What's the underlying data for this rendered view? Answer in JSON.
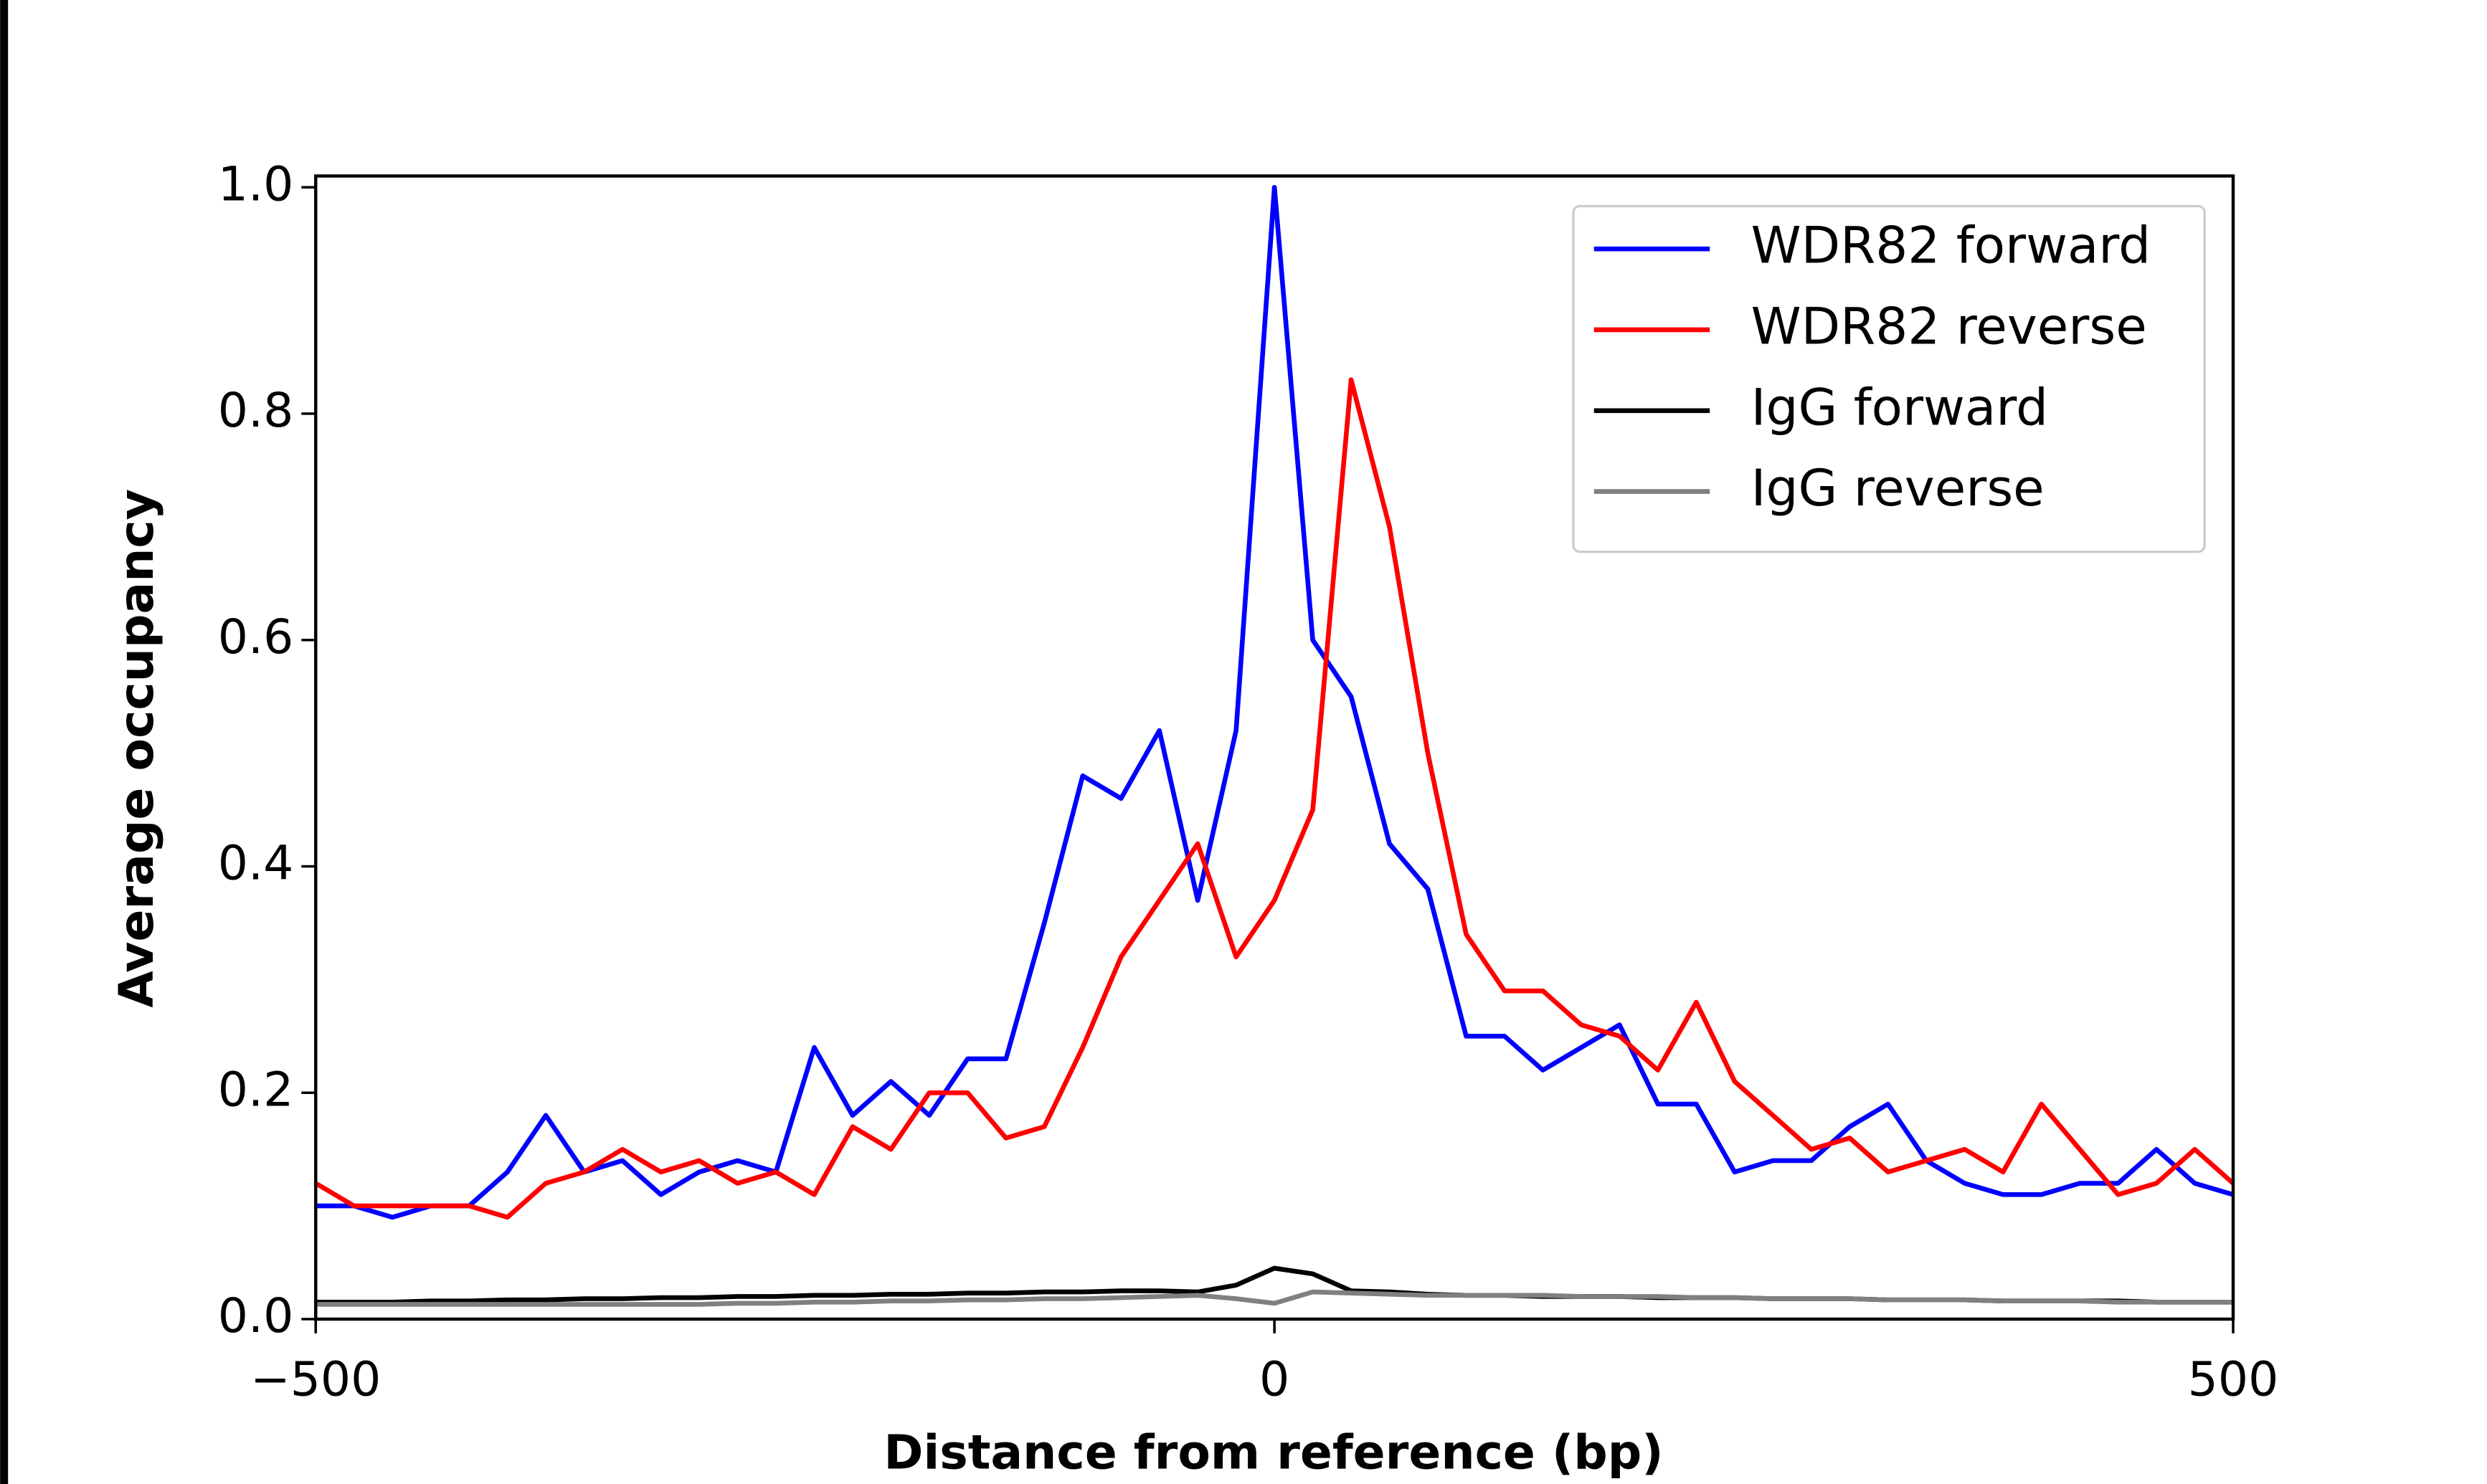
{
  "chart_data": {
    "type": "line",
    "xlabel": "Distance from reference (bp)",
    "ylabel": "Average occupancy",
    "x": [
      -500,
      -480,
      -460,
      -440,
      -420,
      -400,
      -380,
      -360,
      -340,
      -320,
      -300,
      -280,
      -260,
      -240,
      -220,
      -200,
      -180,
      -160,
      -140,
      -120,
      -100,
      -80,
      -60,
      -40,
      -20,
      0,
      20,
      40,
      60,
      80,
      100,
      120,
      140,
      160,
      180,
      200,
      220,
      240,
      260,
      280,
      300,
      320,
      340,
      360,
      380,
      400,
      420,
      440,
      460,
      480,
      500
    ],
    "series": [
      {
        "name": "WDR82 forward",
        "color": "#0000ff",
        "values": [
          0.1,
          0.1,
          0.09,
          0.1,
          0.1,
          0.13,
          0.18,
          0.13,
          0.14,
          0.11,
          0.13,
          0.14,
          0.13,
          0.24,
          0.18,
          0.21,
          0.18,
          0.23,
          0.23,
          0.35,
          0.48,
          0.46,
          0.52,
          0.37,
          0.52,
          1.0,
          0.6,
          0.55,
          0.42,
          0.38,
          0.25,
          0.25,
          0.22,
          0.24,
          0.26,
          0.19,
          0.19,
          0.13,
          0.14,
          0.14,
          0.17,
          0.19,
          0.14,
          0.12,
          0.11,
          0.11,
          0.12,
          0.12,
          0.15,
          0.12,
          0.11
        ]
      },
      {
        "name": "WDR82 reverse",
        "color": "#ff0000",
        "values": [
          0.12,
          0.1,
          0.1,
          0.1,
          0.1,
          0.09,
          0.12,
          0.13,
          0.15,
          0.13,
          0.14,
          0.12,
          0.13,
          0.11,
          0.17,
          0.15,
          0.2,
          0.2,
          0.16,
          0.17,
          0.24,
          0.32,
          0.37,
          0.42,
          0.32,
          0.37,
          0.45,
          0.83,
          0.7,
          0.5,
          0.34,
          0.29,
          0.29,
          0.26,
          0.25,
          0.22,
          0.28,
          0.21,
          0.18,
          0.15,
          0.16,
          0.13,
          0.14,
          0.15,
          0.13,
          0.19,
          0.15,
          0.11,
          0.12,
          0.15,
          0.12
        ]
      },
      {
        "name": "IgG forward",
        "color": "#000000",
        "values": [
          0.015,
          0.015,
          0.015,
          0.016,
          0.016,
          0.017,
          0.017,
          0.018,
          0.018,
          0.019,
          0.019,
          0.02,
          0.02,
          0.021,
          0.021,
          0.022,
          0.022,
          0.023,
          0.023,
          0.024,
          0.024,
          0.025,
          0.025,
          0.024,
          0.03,
          0.045,
          0.04,
          0.025,
          0.024,
          0.022,
          0.021,
          0.021,
          0.02,
          0.02,
          0.02,
          0.019,
          0.019,
          0.019,
          0.018,
          0.018,
          0.018,
          0.017,
          0.017,
          0.017,
          0.016,
          0.016,
          0.016,
          0.016,
          0.015,
          0.015,
          0.015
        ]
      },
      {
        "name": "IgG reverse",
        "color": "#808080",
        "values": [
          0.013,
          0.013,
          0.013,
          0.013,
          0.013,
          0.013,
          0.013,
          0.013,
          0.013,
          0.013,
          0.013,
          0.014,
          0.014,
          0.015,
          0.015,
          0.016,
          0.016,
          0.017,
          0.017,
          0.018,
          0.018,
          0.019,
          0.02,
          0.021,
          0.018,
          0.014,
          0.024,
          0.023,
          0.022,
          0.021,
          0.021,
          0.021,
          0.021,
          0.02,
          0.02,
          0.02,
          0.019,
          0.019,
          0.018,
          0.018,
          0.018,
          0.017,
          0.017,
          0.017,
          0.016,
          0.016,
          0.016,
          0.015,
          0.015,
          0.015,
          0.015
        ]
      }
    ],
    "xlim": [
      -500,
      500
    ],
    "xticks": [
      {
        "value": -500,
        "label": "−500"
      },
      0,
      500
    ],
    "ylim": [
      0,
      1.01
    ],
    "yticks": [
      {
        "value": 0,
        "label": "0.0"
      },
      0.2,
      0.4,
      0.6,
      0.8,
      {
        "value": 1,
        "label": "1.0"
      }
    ],
    "legend": "upper right"
  }
}
